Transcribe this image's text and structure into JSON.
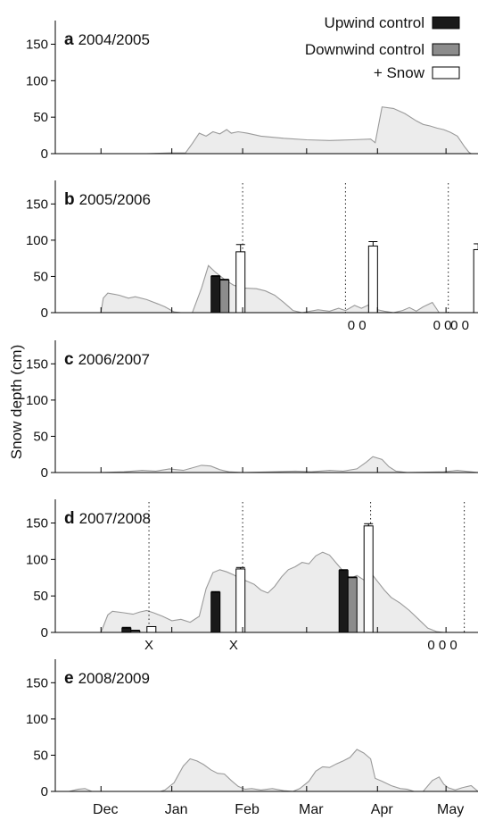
{
  "figure": {
    "ylabel": "Snow depth (cm)",
    "months": [
      "Dec",
      "Jan",
      "Feb",
      "Mar",
      "Apr",
      "May"
    ]
  },
  "legend": [
    {
      "label": "Upwind control",
      "color": "#1a1a1a"
    },
    {
      "label": "Downwind control",
      "color": "#8c8c8c"
    },
    {
      "label": "+ Snow",
      "color": "#ffffff"
    }
  ],
  "colors": {
    "depth_fill": "#ececec",
    "depth_line": "#9a9a9a",
    "axis": "#000000"
  },
  "chart_data": [
    {
      "type": "area",
      "panel": "a",
      "title": "2004/2005",
      "ylim": [
        0,
        180
      ],
      "yticks": [
        0,
        50,
        100,
        150
      ],
      "xlim_days": [
        -20,
        165
      ],
      "depth": [
        [
          0,
          0
        ],
        [
          20,
          0
        ],
        [
          30,
          1
        ],
        [
          37,
          1
        ],
        [
          40,
          14
        ],
        [
          43,
          28
        ],
        [
          46,
          24
        ],
        [
          49,
          30
        ],
        [
          52,
          27
        ],
        [
          55,
          33
        ],
        [
          57,
          28
        ],
        [
          60,
          30
        ],
        [
          64,
          28
        ],
        [
          70,
          24
        ],
        [
          80,
          21
        ],
        [
          90,
          19
        ],
        [
          100,
          18
        ],
        [
          110,
          19
        ],
        [
          118,
          20
        ],
        [
          120,
          15
        ],
        [
          123,
          64
        ],
        [
          128,
          62
        ],
        [
          133,
          55
        ],
        [
          138,
          45
        ],
        [
          141,
          40
        ],
        [
          144,
          38
        ],
        [
          147,
          35
        ],
        [
          150,
          33
        ],
        [
          153,
          29
        ],
        [
          156,
          24
        ],
        [
          159,
          10
        ],
        [
          161,
          2
        ],
        [
          162,
          0
        ],
        [
          165,
          0
        ]
      ],
      "bars": [],
      "measure_days": [],
      "notes": []
    },
    {
      "type": "area",
      "panel": "b",
      "title": "2005/2006",
      "ylim": [
        0,
        180
      ],
      "yticks": [
        0,
        50,
        100,
        150
      ],
      "xlim_days": [
        -20,
        165
      ],
      "depth": [
        [
          0,
          0
        ],
        [
          1,
          20
        ],
        [
          3,
          27
        ],
        [
          8,
          24
        ],
        [
          12,
          20
        ],
        [
          15,
          22
        ],
        [
          20,
          18
        ],
        [
          25,
          12
        ],
        [
          28,
          8
        ],
        [
          32,
          1
        ],
        [
          35,
          0
        ],
        [
          40,
          0
        ],
        [
          44,
          34
        ],
        [
          47,
          65
        ],
        [
          50,
          56
        ],
        [
          54,
          46
        ],
        [
          58,
          38
        ],
        [
          62,
          34
        ],
        [
          68,
          33
        ],
        [
          72,
          30
        ],
        [
          76,
          24
        ],
        [
          80,
          14
        ],
        [
          84,
          3
        ],
        [
          88,
          0
        ],
        [
          95,
          4
        ],
        [
          100,
          2
        ],
        [
          104,
          6
        ],
        [
          107,
          3
        ],
        [
          111,
          10
        ],
        [
          114,
          6
        ],
        [
          118,
          12
        ],
        [
          121,
          4
        ],
        [
          124,
          2
        ],
        [
          128,
          0
        ],
        [
          132,
          3
        ],
        [
          135,
          7
        ],
        [
          138,
          2
        ],
        [
          141,
          8
        ],
        [
          145,
          14
        ],
        [
          148,
          0
        ],
        [
          152,
          0
        ],
        [
          165,
          0
        ]
      ],
      "bars": [
        {
          "day": 56,
          "upwind": 50,
          "downwind": 45,
          "snow": 84,
          "snow_err": 10
        },
        {
          "day": 114,
          "snow": 92,
          "snow_err": 6
        },
        {
          "day": 160,
          "snow": 87,
          "snow_err": 8
        },
        {
          "day": 200,
          "upwind": 1,
          "downwind": 2,
          "snow": 3,
          "snow_err": 0
        }
      ],
      "measure_days": [
        62,
        107,
        152,
        195
      ],
      "notes": [
        {
          "text": "0 0",
          "day": 112
        },
        {
          "text": "0 0",
          "day": 157
        },
        {
          "text": "0 0",
          "day": 198
        }
      ]
    },
    {
      "type": "area",
      "panel": "c",
      "title": "2006/2007",
      "ylim": [
        0,
        180
      ],
      "yticks": [
        0,
        50,
        100,
        150
      ],
      "xlim_days": [
        -20,
        165
      ],
      "depth": [
        [
          0,
          0
        ],
        [
          10,
          1
        ],
        [
          18,
          3
        ],
        [
          24,
          2
        ],
        [
          30,
          5
        ],
        [
          36,
          3
        ],
        [
          44,
          10
        ],
        [
          48,
          9
        ],
        [
          52,
          4
        ],
        [
          56,
          1
        ],
        [
          62,
          0
        ],
        [
          75,
          1
        ],
        [
          85,
          2
        ],
        [
          92,
          1
        ],
        [
          100,
          3
        ],
        [
          106,
          2
        ],
        [
          112,
          5
        ],
        [
          116,
          14
        ],
        [
          119,
          22
        ],
        [
          123,
          18
        ],
        [
          126,
          8
        ],
        [
          129,
          2
        ],
        [
          134,
          0
        ],
        [
          150,
          1
        ],
        [
          156,
          3
        ],
        [
          165,
          0
        ]
      ],
      "bars": [],
      "measure_days": [],
      "notes": []
    },
    {
      "type": "area",
      "panel": "d",
      "title": "2007/2008",
      "ylim": [
        0,
        180
      ],
      "yticks": [
        0,
        50,
        100,
        150
      ],
      "xlim_days": [
        -20,
        165
      ],
      "depth": [
        [
          0,
          0
        ],
        [
          3,
          24
        ],
        [
          5,
          29
        ],
        [
          10,
          27
        ],
        [
          14,
          25
        ],
        [
          17,
          28
        ],
        [
          20,
          30
        ],
        [
          23,
          27
        ],
        [
          27,
          22
        ],
        [
          31,
          16
        ],
        [
          35,
          18
        ],
        [
          39,
          14
        ],
        [
          43,
          22
        ],
        [
          46,
          60
        ],
        [
          49,
          82
        ],
        [
          52,
          86
        ],
        [
          55,
          83
        ],
        [
          58,
          79
        ],
        [
          61,
          74
        ],
        [
          64,
          70
        ],
        [
          67,
          66
        ],
        [
          70,
          58
        ],
        [
          73,
          54
        ],
        [
          76,
          63
        ],
        [
          79,
          76
        ],
        [
          82,
          86
        ],
        [
          85,
          90
        ],
        [
          88,
          96
        ],
        [
          91,
          94
        ],
        [
          94,
          105
        ],
        [
          97,
          110
        ],
        [
          100,
          106
        ],
        [
          103,
          95
        ],
        [
          106,
          84
        ],
        [
          109,
          74
        ],
        [
          112,
          78
        ],
        [
          115,
          72
        ],
        [
          118,
          82
        ],
        [
          121,
          70
        ],
        [
          124,
          58
        ],
        [
          127,
          48
        ],
        [
          131,
          40
        ],
        [
          135,
          30
        ],
        [
          139,
          18
        ],
        [
          143,
          6
        ],
        [
          147,
          1
        ],
        [
          150,
          0
        ],
        [
          165,
          0
        ]
      ],
      "bars": [
        {
          "day": 17,
          "upwind": 6,
          "downwind": 2,
          "snow": 8,
          "snow_err": 0
        },
        {
          "day": 56,
          "upwind": 55,
          "snow": 87,
          "snow_err": 2
        },
        {
          "day": 112,
          "upwind": 85,
          "downwind": 75,
          "snow": 146,
          "snow_err": 3
        }
      ],
      "measure_days": [
        21,
        62,
        118,
        159
      ],
      "notes": [
        {
          "text": "X",
          "day": 21
        },
        {
          "text": "X",
          "day": 58
        },
        {
          "text": "0 0 0",
          "day": 159
        }
      ]
    },
    {
      "type": "area",
      "panel": "e",
      "title": "2008/2009",
      "ylim": [
        0,
        180
      ],
      "yticks": [
        0,
        50,
        100,
        150
      ],
      "xlim_days": [
        -20,
        165
      ],
      "depth": [
        [
          -14,
          0
        ],
        [
          -10,
          3
        ],
        [
          -7,
          4
        ],
        [
          -4,
          0
        ],
        [
          0,
          0
        ],
        [
          26,
          0
        ],
        [
          28,
          2
        ],
        [
          32,
          12
        ],
        [
          36,
          35
        ],
        [
          39,
          45
        ],
        [
          42,
          42
        ],
        [
          45,
          37
        ],
        [
          48,
          30
        ],
        [
          51,
          25
        ],
        [
          54,
          24
        ],
        [
          57,
          15
        ],
        [
          60,
          7
        ],
        [
          63,
          3
        ],
        [
          66,
          4
        ],
        [
          70,
          2
        ],
        [
          75,
          4
        ],
        [
          80,
          1
        ],
        [
          84,
          0
        ],
        [
          87,
          4
        ],
        [
          91,
          14
        ],
        [
          94,
          28
        ],
        [
          97,
          34
        ],
        [
          100,
          33
        ],
        [
          103,
          38
        ],
        [
          106,
          42
        ],
        [
          109,
          47
        ],
        [
          112,
          58
        ],
        [
          115,
          53
        ],
        [
          118,
          45
        ],
        [
          120,
          18
        ],
        [
          123,
          14
        ],
        [
          127,
          8
        ],
        [
          131,
          4
        ],
        [
          134,
          3
        ],
        [
          137,
          0
        ],
        [
          141,
          0
        ],
        [
          145,
          15
        ],
        [
          148,
          20
        ],
        [
          150,
          10
        ],
        [
          152,
          5
        ],
        [
          155,
          2
        ],
        [
          158,
          5
        ],
        [
          162,
          8
        ],
        [
          165,
          0
        ]
      ],
      "bars": [],
      "measure_days": [],
      "notes": []
    }
  ]
}
